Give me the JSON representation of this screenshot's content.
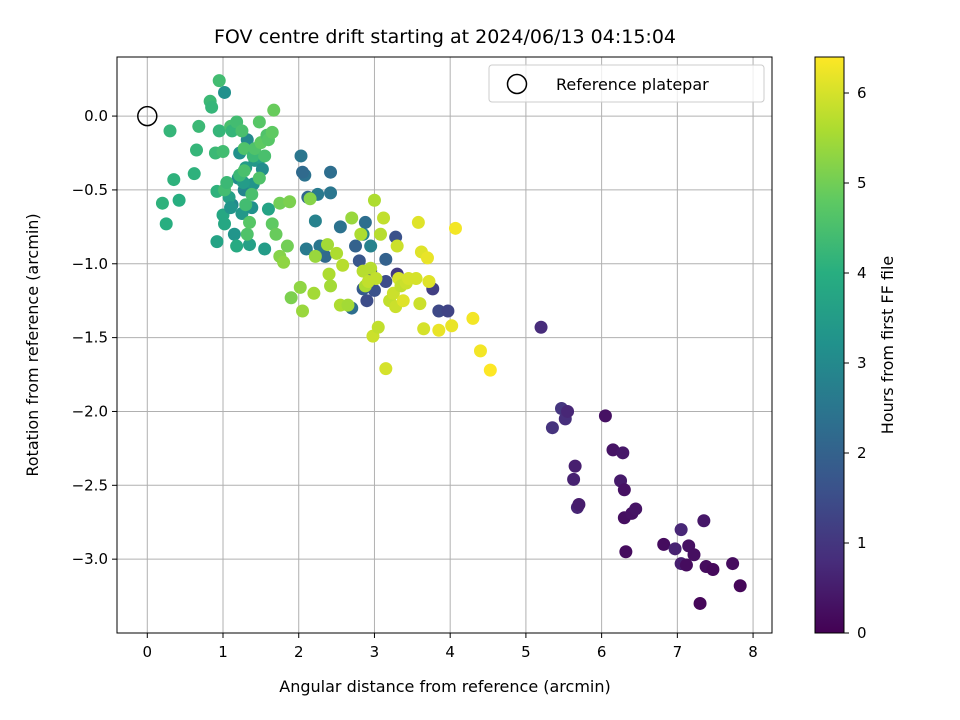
{
  "chart_data": {
    "type": "scatter",
    "title": "FOV centre drift starting at 2024/06/13 04:15:04",
    "xlabel": "Angular distance from reference (arcmin)",
    "ylabel": "Rotation from reference (arcmin)",
    "xlim": [
      -0.4,
      8.25
    ],
    "ylim": [
      -3.5,
      0.4
    ],
    "xticks": [
      0,
      1,
      2,
      3,
      4,
      5,
      6,
      7,
      8
    ],
    "yticks": [
      0.0,
      -0.5,
      -1.0,
      -1.5,
      -2.0,
      -2.5,
      -3.0
    ],
    "xtick_labels": [
      "0",
      "1",
      "2",
      "3",
      "4",
      "5",
      "6",
      "7",
      "8"
    ],
    "ytick_labels": [
      "0.0",
      "−0.5",
      "−1.0",
      "−1.5",
      "−2.0",
      "−2.5",
      "−3.0"
    ],
    "grid": true,
    "legend": {
      "position": "top-right",
      "label": "Reference platepar"
    },
    "reference_point": {
      "x": 0.0,
      "y": 0.0
    },
    "colorbar": {
      "label": "Hours from first FF file",
      "colormap": "viridis",
      "range": [
        0,
        6.4
      ],
      "ticks": [
        0,
        1,
        2,
        3,
        4,
        5,
        6
      ],
      "tick_labels": [
        "0",
        "1",
        "2",
        "3",
        "4",
        "5",
        "6"
      ]
    },
    "points": [
      [
        5.2,
        -1.43,
        0.8
      ],
      [
        5.35,
        -2.11,
        0.95
      ],
      [
        5.47,
        -1.98,
        1.0
      ],
      [
        5.52,
        -2.05,
        0.85
      ],
      [
        5.55,
        -2.0,
        0.7
      ],
      [
        5.63,
        -2.46,
        0.6
      ],
      [
        5.65,
        -2.37,
        0.55
      ],
      [
        5.68,
        -2.65,
        0.65
      ],
      [
        5.7,
        -2.63,
        0.5
      ],
      [
        6.05,
        -2.03,
        0.3
      ],
      [
        6.15,
        -2.26,
        0.35
      ],
      [
        6.25,
        -2.47,
        0.45
      ],
      [
        6.28,
        -2.28,
        0.4
      ],
      [
        6.3,
        -2.53,
        0.3
      ],
      [
        6.3,
        -2.72,
        0.25
      ],
      [
        6.32,
        -2.95,
        0.2
      ],
      [
        6.4,
        -2.69,
        0.3
      ],
      [
        6.45,
        -2.66,
        0.35
      ],
      [
        6.82,
        -2.9,
        0.2
      ],
      [
        6.97,
        -2.93,
        0.6
      ],
      [
        7.05,
        -2.8,
        0.7
      ],
      [
        7.05,
        -3.03,
        0.55
      ],
      [
        7.12,
        -3.04,
        0.2
      ],
      [
        7.15,
        -2.91,
        0.3
      ],
      [
        7.22,
        -2.97,
        0.25
      ],
      [
        7.3,
        -3.3,
        0.1
      ],
      [
        7.35,
        -2.74,
        0.4
      ],
      [
        7.38,
        -3.05,
        0.2
      ],
      [
        7.47,
        -3.07,
        0.15
      ],
      [
        7.73,
        -3.03,
        0.2
      ],
      [
        7.83,
        -3.18,
        0.1
      ],
      [
        3.77,
        -1.17,
        1.2
      ],
      [
        3.85,
        -1.32,
        1.4
      ],
      [
        3.97,
        -1.32,
        1.3
      ],
      [
        3.3,
        -1.07,
        1.1
      ],
      [
        3.15,
        -1.12,
        1.5
      ],
      [
        3.28,
        -0.82,
        1.6
      ],
      [
        2.9,
        -1.25,
        1.5
      ],
      [
        2.85,
        -1.17,
        1.8
      ],
      [
        2.8,
        -0.98,
        1.7
      ],
      [
        2.95,
        -1.05,
        1.4
      ],
      [
        2.75,
        -0.88,
        2.0
      ],
      [
        2.7,
        -1.3,
        2.3
      ],
      [
        2.55,
        -0.75,
        2.4
      ],
      [
        2.42,
        -0.52,
        2.5
      ],
      [
        2.42,
        -0.38,
        2.3
      ],
      [
        2.35,
        -0.95,
        2.2
      ],
      [
        2.28,
        -0.88,
        2.5
      ],
      [
        2.25,
        -0.53,
        2.6
      ],
      [
        2.22,
        -0.71,
        2.8
      ],
      [
        2.12,
        -0.55,
        2.1
      ],
      [
        2.1,
        -0.9,
        2.6
      ],
      [
        2.08,
        -0.4,
        2.4
      ],
      [
        2.05,
        -0.38,
        2.2
      ],
      [
        2.03,
        -0.27,
        2.5
      ],
      [
        2.85,
        -0.8,
        2.9
      ],
      [
        2.88,
        -0.72,
        2.3
      ],
      [
        2.95,
        -0.88,
        2.8
      ],
      [
        3.15,
        -0.97,
        2.0
      ],
      [
        3.0,
        -1.18,
        1.6
      ],
      [
        1.02,
        0.16,
        3.2
      ],
      [
        1.12,
        -0.6,
        3.0
      ],
      [
        1.15,
        -0.8,
        3.3
      ],
      [
        1.2,
        -0.42,
        3.1
      ],
      [
        1.22,
        -0.25,
        3.2
      ],
      [
        1.25,
        -0.66,
        3.4
      ],
      [
        1.28,
        -0.5,
        2.9
      ],
      [
        1.3,
        -0.35,
        3.5
      ],
      [
        1.32,
        -0.16,
        3.0
      ],
      [
        1.35,
        -0.87,
        3.6
      ],
      [
        1.38,
        -0.62,
        3.2
      ],
      [
        1.4,
        -0.46,
        3.3
      ],
      [
        1.42,
        -0.3,
        3.4
      ],
      [
        1.5,
        -0.28,
        3.6
      ],
      [
        1.52,
        -0.36,
        3.1
      ],
      [
        1.55,
        -0.9,
        3.5
      ],
      [
        1.6,
        -0.63,
        3.7
      ],
      [
        1.08,
        -0.55,
        3.6
      ],
      [
        1.0,
        -0.67,
        3.8
      ],
      [
        0.92,
        -0.85,
        3.7
      ],
      [
        1.18,
        -0.88,
        3.9
      ],
      [
        1.02,
        -0.73,
        3.8
      ],
      [
        1.27,
        -0.45,
        3.5
      ],
      [
        1.1,
        -0.62,
        3.3
      ],
      [
        0.2,
        -0.59,
        4.1
      ],
      [
        0.25,
        -0.73,
        4.0
      ],
      [
        0.3,
        -0.1,
        4.2
      ],
      [
        0.35,
        -0.43,
        4.1
      ],
      [
        0.42,
        -0.57,
        4.0
      ],
      [
        0.62,
        -0.39,
        4.1
      ],
      [
        0.65,
        -0.23,
        4.2
      ],
      [
        0.68,
        -0.07,
        4.3
      ],
      [
        0.83,
        0.1,
        4.3
      ],
      [
        0.85,
        0.06,
        4.2
      ],
      [
        0.95,
        0.24,
        4.4
      ],
      [
        0.9,
        -0.25,
        4.3
      ],
      [
        0.95,
        -0.1,
        4.2
      ],
      [
        0.92,
        -0.51,
        4.1
      ],
      [
        1.0,
        -0.24,
        4.4
      ],
      [
        1.02,
        -0.5,
        4.4
      ],
      [
        1.05,
        -0.45,
        4.3
      ],
      [
        1.1,
        -0.07,
        4.5
      ],
      [
        1.12,
        -0.1,
        4.2
      ],
      [
        1.18,
        -0.04,
        4.4
      ],
      [
        1.22,
        -0.4,
        4.3
      ],
      [
        1.25,
        -0.1,
        4.5
      ],
      [
        1.28,
        -0.22,
        4.6
      ],
      [
        1.3,
        -0.6,
        4.4
      ],
      [
        1.32,
        -0.8,
        4.6
      ],
      [
        1.35,
        -0.72,
        4.7
      ],
      [
        1.38,
        -0.53,
        4.5
      ],
      [
        1.4,
        -0.27,
        4.3
      ],
      [
        1.42,
        -0.22,
        4.6
      ],
      [
        1.48,
        -0.04,
        4.7
      ],
      [
        1.5,
        -0.18,
        4.8
      ],
      [
        1.55,
        -0.27,
        4.5
      ],
      [
        1.58,
        -0.13,
        4.6
      ],
      [
        1.6,
        -0.16,
        4.7
      ],
      [
        1.65,
        -0.11,
        4.8
      ],
      [
        1.67,
        0.04,
        4.9
      ],
      [
        1.65,
        -0.73,
        4.8
      ],
      [
        1.7,
        -0.8,
        4.9
      ],
      [
        1.75,
        -0.59,
        5.0
      ],
      [
        1.85,
        -0.88,
        5.0
      ],
      [
        1.88,
        -0.58,
        5.1
      ],
      [
        1.9,
        -1.23,
        5.1
      ],
      [
        1.28,
        -0.37,
        4.5
      ],
      [
        1.48,
        -0.42,
        4.6
      ],
      [
        1.75,
        -0.95,
        5.2
      ],
      [
        1.8,
        -0.99,
        5.3
      ],
      [
        2.05,
        -1.32,
        5.4
      ],
      [
        2.02,
        -1.16,
        5.3
      ],
      [
        2.15,
        -0.56,
        5.2
      ],
      [
        2.2,
        -1.2,
        5.5
      ],
      [
        2.22,
        -0.95,
        5.4
      ],
      [
        2.38,
        -0.87,
        5.5
      ],
      [
        2.4,
        -1.07,
        5.6
      ],
      [
        2.42,
        -1.15,
        5.5
      ],
      [
        2.5,
        -0.93,
        5.6
      ],
      [
        2.55,
        -1.28,
        5.6
      ],
      [
        2.58,
        -1.01,
        5.7
      ],
      [
        2.65,
        -1.28,
        5.5
      ],
      [
        2.7,
        -0.69,
        5.4
      ],
      [
        2.82,
        -0.8,
        5.6
      ],
      [
        2.85,
        -1.05,
        5.7
      ],
      [
        2.88,
        -1.15,
        5.6
      ],
      [
        2.92,
        -1.12,
        5.8
      ],
      [
        2.95,
        -1.03,
        5.7
      ],
      [
        2.98,
        -1.49,
        5.9
      ],
      [
        3.0,
        -0.57,
        5.6
      ],
      [
        3.02,
        -1.1,
        5.8
      ],
      [
        3.05,
        -1.43,
        5.8
      ],
      [
        3.08,
        -0.8,
        5.7
      ],
      [
        3.12,
        -0.69,
        5.8
      ],
      [
        3.15,
        -1.71,
        6.0
      ],
      [
        3.2,
        -1.25,
        5.8
      ],
      [
        3.25,
        -1.2,
        5.9
      ],
      [
        3.28,
        -1.29,
        5.9
      ],
      [
        3.3,
        -0.88,
        5.9
      ],
      [
        3.32,
        -1.1,
        6.0
      ],
      [
        3.35,
        -1.15,
        5.8
      ],
      [
        3.38,
        -1.25,
        6.1
      ],
      [
        3.42,
        -1.13,
        5.9
      ],
      [
        3.45,
        -1.1,
        6.0
      ],
      [
        3.55,
        -1.1,
        6.0
      ],
      [
        3.58,
        -0.72,
        6.1
      ],
      [
        3.6,
        -1.27,
        5.9
      ],
      [
        3.62,
        -0.92,
        6.1
      ],
      [
        3.65,
        -1.44,
        6.0
      ],
      [
        3.7,
        -0.96,
        6.2
      ],
      [
        3.72,
        -1.12,
        6.1
      ],
      [
        3.85,
        -1.45,
        6.2
      ],
      [
        4.02,
        -1.42,
        6.2
      ],
      [
        4.07,
        -0.76,
        6.3
      ],
      [
        4.3,
        -1.37,
        6.3
      ],
      [
        4.4,
        -1.59,
        6.3
      ],
      [
        4.53,
        -1.72,
        6.4
      ]
    ]
  }
}
